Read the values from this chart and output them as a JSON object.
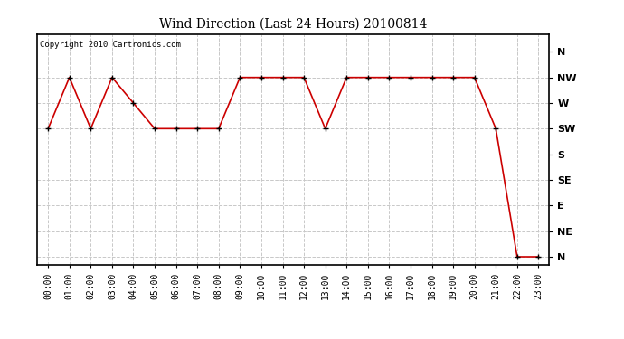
{
  "title": "Wind Direction (Last 24 Hours) 20100814",
  "copyright_text": "Copyright 2010 Cartronics.com",
  "background_color": "#ffffff",
  "plot_bg_color": "#ffffff",
  "grid_color": "#c8c8c8",
  "line_color": "#cc0000",
  "marker_color": "#000000",
  "hours": [
    0,
    1,
    2,
    3,
    4,
    5,
    6,
    7,
    8,
    9,
    10,
    11,
    12,
    13,
    14,
    15,
    16,
    17,
    18,
    19,
    20,
    21,
    22,
    23
  ],
  "hour_labels": [
    "00:00",
    "01:00",
    "02:00",
    "03:00",
    "04:00",
    "05:00",
    "06:00",
    "07:00",
    "08:00",
    "09:00",
    "10:00",
    "11:00",
    "12:00",
    "13:00",
    "14:00",
    "15:00",
    "16:00",
    "17:00",
    "18:00",
    "19:00",
    "20:00",
    "21:00",
    "22:00",
    "23:00"
  ],
  "wind_values": [
    5,
    7,
    5,
    7,
    6,
    5,
    5,
    5,
    5,
    7,
    7,
    7,
    7,
    5,
    7,
    7,
    7,
    7,
    7,
    7,
    7,
    5,
    0,
    0
  ],
  "ytick_labels": [
    "N",
    "NW",
    "W",
    "SW",
    "S",
    "SE",
    "E",
    "NE",
    "N"
  ],
  "ytick_values": [
    8,
    7,
    6,
    5,
    4,
    3,
    2,
    1,
    0
  ],
  "ylim": [
    -0.3,
    8.7
  ],
  "xlim": [
    -0.5,
    23.5
  ],
  "title_fontsize": 10,
  "tick_fontsize": 7,
  "ytick_fontsize": 8
}
